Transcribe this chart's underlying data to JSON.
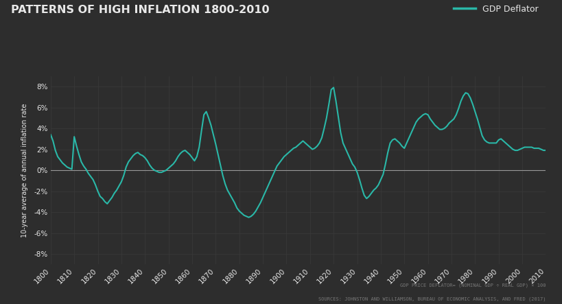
{
  "title": "PATTERNS OF HIGH INFLATION 1800-2010",
  "ylabel": "10-year average of annual inflation rate",
  "legend_label": "GDP Deflator",
  "footnote1": "GDP PRICE DEFLATOR= (NOMINAL GDP ÷ REAL GDP) × 100",
  "footnote2": "SOURCES: JOHNSTON AND WILLIAMSON, BUREAU OF ECONOMIC ANALYSIS, AND FRED (2017)",
  "bg_color": "#2d2d2d",
  "line_color": "#2ab8a8",
  "grid_color": "#3a3a3a",
  "text_color": "#e8e8e8",
  "footnote_color": "#777777",
  "zero_line_color": "#999999",
  "ylim": [
    -9,
    9
  ],
  "yticks": [
    -8,
    -6,
    -4,
    -2,
    0,
    2,
    4,
    6,
    8
  ],
  "xlim": [
    1800,
    2010
  ],
  "xticks": [
    1800,
    1810,
    1820,
    1830,
    1840,
    1850,
    1860,
    1870,
    1880,
    1890,
    1900,
    1910,
    1920,
    1930,
    1940,
    1950,
    1960,
    1970,
    1980,
    1990,
    2000,
    2010
  ],
  "years": [
    1800,
    1801,
    1802,
    1803,
    1804,
    1805,
    1806,
    1807,
    1808,
    1809,
    1810,
    1811,
    1812,
    1813,
    1814,
    1815,
    1816,
    1817,
    1818,
    1819,
    1820,
    1821,
    1822,
    1823,
    1824,
    1825,
    1826,
    1827,
    1828,
    1829,
    1830,
    1831,
    1832,
    1833,
    1834,
    1835,
    1836,
    1837,
    1838,
    1839,
    1840,
    1841,
    1842,
    1843,
    1844,
    1845,
    1846,
    1847,
    1848,
    1849,
    1850,
    1851,
    1852,
    1853,
    1854,
    1855,
    1856,
    1857,
    1858,
    1859,
    1860,
    1861,
    1862,
    1863,
    1864,
    1865,
    1866,
    1867,
    1868,
    1869,
    1870,
    1871,
    1872,
    1873,
    1874,
    1875,
    1876,
    1877,
    1878,
    1879,
    1880,
    1881,
    1882,
    1883,
    1884,
    1885,
    1886,
    1887,
    1888,
    1889,
    1890,
    1891,
    1892,
    1893,
    1894,
    1895,
    1896,
    1897,
    1898,
    1899,
    1900,
    1901,
    1902,
    1903,
    1904,
    1905,
    1906,
    1907,
    1908,
    1909,
    1910,
    1911,
    1912,
    1913,
    1914,
    1915,
    1916,
    1917,
    1918,
    1919,
    1920,
    1921,
    1922,
    1923,
    1924,
    1925,
    1926,
    1927,
    1928,
    1929,
    1930,
    1931,
    1932,
    1933,
    1934,
    1935,
    1936,
    1937,
    1938,
    1939,
    1940,
    1941,
    1942,
    1943,
    1944,
    1945,
    1946,
    1947,
    1948,
    1949,
    1950,
    1951,
    1952,
    1953,
    1954,
    1955,
    1956,
    1957,
    1958,
    1959,
    1960,
    1961,
    1962,
    1963,
    1964,
    1965,
    1966,
    1967,
    1968,
    1969,
    1970,
    1971,
    1972,
    1973,
    1974,
    1975,
    1976,
    1977,
    1978,
    1979,
    1980,
    1981,
    1982,
    1983,
    1984,
    1985,
    1986,
    1987,
    1988,
    1989,
    1990,
    1991,
    1992,
    1993,
    1994,
    1995,
    1996,
    1997,
    1998,
    1999,
    2000,
    2001,
    2002,
    2003,
    2004,
    2005,
    2006,
    2007,
    2008,
    2009,
    2010
  ],
  "values": [
    3.4,
    2.8,
    1.9,
    1.3,
    1.0,
    0.7,
    0.5,
    0.3,
    0.2,
    0.1,
    3.2,
    2.3,
    1.5,
    0.8,
    0.4,
    0.1,
    -0.3,
    -0.6,
    -0.9,
    -1.4,
    -2.0,
    -2.5,
    -2.7,
    -3.0,
    -3.2,
    -2.9,
    -2.6,
    -2.2,
    -1.9,
    -1.5,
    -1.1,
    -0.5,
    0.3,
    0.8,
    1.1,
    1.4,
    1.6,
    1.7,
    1.5,
    1.4,
    1.2,
    0.9,
    0.5,
    0.2,
    0.0,
    -0.1,
    -0.2,
    -0.2,
    -0.1,
    0.0,
    0.2,
    0.4,
    0.6,
    0.9,
    1.3,
    1.6,
    1.8,
    1.9,
    1.7,
    1.5,
    1.2,
    0.9,
    1.3,
    2.2,
    3.8,
    5.3,
    5.6,
    5.0,
    4.3,
    3.4,
    2.5,
    1.5,
    0.5,
    -0.5,
    -1.3,
    -1.9,
    -2.3,
    -2.7,
    -3.1,
    -3.6,
    -3.9,
    -4.1,
    -4.3,
    -4.4,
    -4.5,
    -4.4,
    -4.2,
    -3.9,
    -3.5,
    -3.1,
    -2.6,
    -2.1,
    -1.6,
    -1.1,
    -0.6,
    -0.1,
    0.4,
    0.7,
    1.0,
    1.3,
    1.5,
    1.7,
    1.9,
    2.1,
    2.2,
    2.4,
    2.6,
    2.8,
    2.6,
    2.4,
    2.2,
    2.0,
    2.1,
    2.3,
    2.6,
    3.1,
    4.0,
    5.0,
    6.3,
    7.7,
    7.9,
    6.6,
    5.1,
    3.6,
    2.6,
    2.1,
    1.6,
    1.1,
    0.6,
    0.3,
    -0.2,
    -0.9,
    -1.7,
    -2.4,
    -2.7,
    -2.5,
    -2.2,
    -1.9,
    -1.7,
    -1.4,
    -0.9,
    -0.4,
    0.6,
    1.7,
    2.6,
    2.9,
    3.0,
    2.8,
    2.6,
    2.3,
    2.1,
    2.6,
    3.1,
    3.6,
    4.1,
    4.6,
    4.9,
    5.1,
    5.3,
    5.4,
    5.3,
    4.9,
    4.6,
    4.3,
    4.1,
    3.9,
    3.9,
    4.0,
    4.2,
    4.5,
    4.7,
    4.9,
    5.3,
    5.9,
    6.6,
    7.1,
    7.4,
    7.3,
    6.9,
    6.3,
    5.6,
    4.9,
    4.1,
    3.3,
    2.9,
    2.7,
    2.6,
    2.6,
    2.6,
    2.6,
    2.9,
    3.0,
    2.8,
    2.6,
    2.4,
    2.2,
    2.0,
    1.9,
    1.9,
    2.0,
    2.1,
    2.2,
    2.2,
    2.2,
    2.2,
    2.1,
    2.1,
    2.1,
    2.0,
    1.9,
    1.9
  ]
}
